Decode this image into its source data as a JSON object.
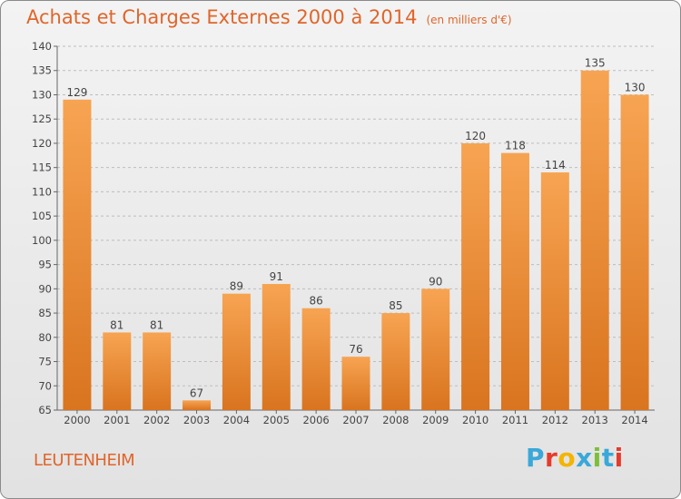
{
  "header": {
    "title": "Achats et Charges Externes 2000 à 2014",
    "subtitle": "(en milliers d'€)"
  },
  "footer": {
    "commune": "LEUTENHEIM",
    "logo": {
      "letters": [
        "P",
        "r",
        "o",
        "x",
        "i",
        "t",
        "i"
      ],
      "colors": [
        "#3aa8d8",
        "#e53b2c",
        "#f4b400",
        "#3aa8d8",
        "#7cbf3a",
        "#3aa8d8",
        "#e53b2c"
      ]
    }
  },
  "colors": {
    "bar_light": "#f7a452",
    "bar_dark": "#d9741f",
    "axis_text": "#444444",
    "grid": "#bdbdbd"
  },
  "chart_data": {
    "type": "bar",
    "title": "Achats et Charges Externes 2000 à 2014",
    "subtitle": "(en milliers d'€)",
    "categories": [
      "2000",
      "2001",
      "2002",
      "2003",
      "2004",
      "2005",
      "2006",
      "2007",
      "2008",
      "2009",
      "2010",
      "2011",
      "2012",
      "2013",
      "2014"
    ],
    "values": [
      129,
      81,
      81,
      67,
      89,
      91,
      86,
      76,
      85,
      90,
      120,
      118,
      114,
      135,
      130
    ],
    "xlabel": "",
    "ylabel": "",
    "ylim": [
      65,
      140
    ],
    "yticks": [
      65,
      70,
      75,
      80,
      85,
      90,
      95,
      100,
      105,
      110,
      115,
      120,
      125,
      130,
      135,
      140
    ],
    "grid": "horizontal dashed",
    "data_labels": true
  }
}
